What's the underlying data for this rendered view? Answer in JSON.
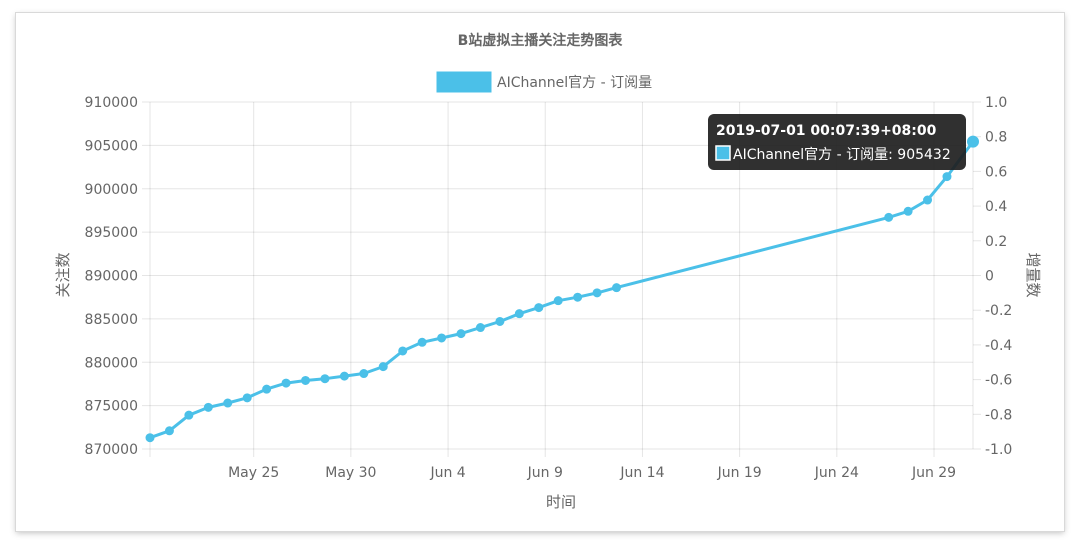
{
  "chart_data": {
    "type": "line",
    "title": "B站虚拟主播关注走势图表",
    "xlabel": "时间",
    "ylabel": "关注数",
    "y2label": "增量数",
    "legend_position": "top",
    "grid": true,
    "x_tick_labels": [
      "May 25",
      "May 30",
      "Jun 4",
      "Jun 9",
      "Jun 14",
      "Jun 19",
      "Jun 24",
      "Jun 29"
    ],
    "ylim": [
      870000,
      910000
    ],
    "y_ticks": [
      870000,
      875000,
      880000,
      885000,
      890000,
      895000,
      900000,
      905000,
      910000
    ],
    "y2lim": [
      -1.0,
      1.0
    ],
    "y2_ticks": [
      "-1.0",
      "-0.8",
      "-0.6",
      "-0.4",
      "-0.2",
      "0",
      "0.2",
      "0.4",
      "0.6",
      "0.8",
      "1.0"
    ],
    "series": [
      {
        "name": "AIChannel官方 - 订阅量",
        "color": "#4bc0e8",
        "x": [
          "2019-05-20",
          "2019-05-21",
          "2019-05-22",
          "2019-05-23",
          "2019-05-24",
          "2019-05-25",
          "2019-05-26",
          "2019-05-27",
          "2019-05-28",
          "2019-05-29",
          "2019-05-30",
          "2019-05-31",
          "2019-06-01",
          "2019-06-02",
          "2019-06-03",
          "2019-06-04",
          "2019-06-05",
          "2019-06-06",
          "2019-06-07",
          "2019-06-08",
          "2019-06-09",
          "2019-06-10",
          "2019-06-11",
          "2019-06-12",
          "2019-06-13",
          "2019-06-27",
          "2019-06-28",
          "2019-06-29",
          "2019-06-30",
          "2019-07-01"
        ],
        "values": [
          871300,
          872100,
          873900,
          874800,
          875300,
          875900,
          876900,
          877600,
          877900,
          878100,
          878400,
          878700,
          879500,
          881300,
          882300,
          882800,
          883300,
          884000,
          884700,
          885600,
          886300,
          887100,
          887500,
          888000,
          888600,
          896700,
          897400,
          898700,
          901400,
          905432
        ]
      }
    ],
    "tooltip": {
      "title": "2019-07-01 00:07:39+08:00",
      "label": "AIChannel官方 - 订阅量: 905432"
    }
  }
}
